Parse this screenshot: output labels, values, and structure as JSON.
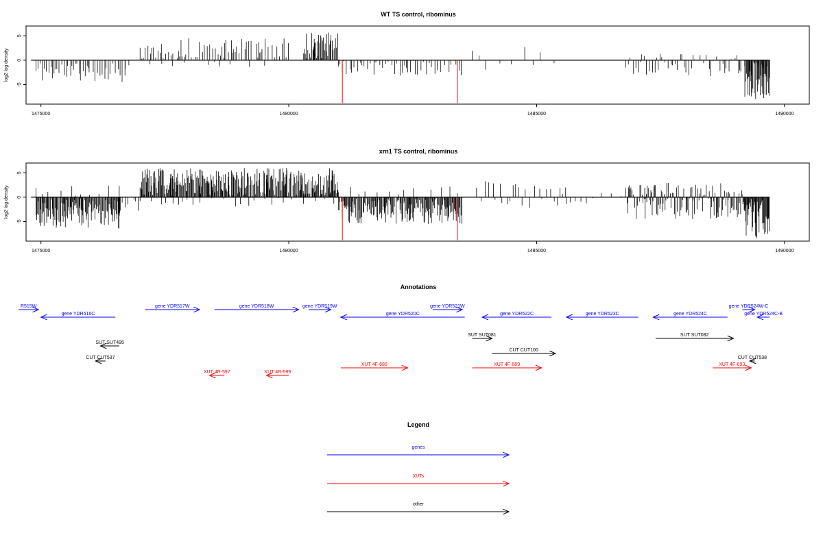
{
  "chart_data": [
    {
      "type": "bar",
      "title": "WT TS control, ribominus",
      "ylabel": "log2 log density",
      "xlim": [
        1474700,
        1490500
      ],
      "ylim": [
        -9,
        7
      ],
      "x_ticks": [
        1475000,
        1480000,
        1485000,
        1490000
      ],
      "y_ticks": [
        5,
        0,
        -5
      ],
      "baseline": {
        "x": [
          1474800,
          1489700
        ],
        "y": 0
      },
      "red_marks": [
        {
          "x": 1481080,
          "y": -8.8
        },
        {
          "x": 1483400,
          "y": -8.8
        }
      ],
      "density_segments": [
        {
          "x": [
            1474900,
            1476700
          ],
          "min": -4.5,
          "max": 0,
          "spacing": 40,
          "seed": 11
        },
        {
          "x": [
            1476700,
            1477000
          ],
          "min": -2.5,
          "max": 0,
          "spacing": 150,
          "seed": 12
        },
        {
          "x": [
            1477000,
            1480000
          ],
          "min": 0,
          "max": 4.5,
          "spacing": 40,
          "seed": 13
        },
        {
          "x": [
            1477200,
            1479800
          ],
          "min": -1.5,
          "max": 0,
          "spacing": 260,
          "seed": 14
        },
        {
          "x": [
            1480300,
            1481000
          ],
          "min": 0,
          "max": 5.8,
          "spacing": 18,
          "seed": 15
        },
        {
          "x": [
            1481000,
            1483500
          ],
          "min": -3.5,
          "max": 0,
          "spacing": 55,
          "seed": 16
        },
        {
          "x": [
            1483700,
            1485500
          ],
          "min": -2.5,
          "max": 4,
          "spacing": 220,
          "seed": 17
        },
        {
          "x": [
            1486800,
            1489200
          ],
          "min": -3.5,
          "max": 1.5,
          "spacing": 45,
          "seed": 18
        },
        {
          "x": [
            1489200,
            1489700
          ],
          "min": -8,
          "max": 0,
          "spacing": 12,
          "seed": 19
        }
      ]
    },
    {
      "type": "bar",
      "title": "xrn1 TS control, ribominus",
      "ylabel": "log2 log density",
      "xlim": [
        1474700,
        1490500
      ],
      "ylim": [
        -9,
        7
      ],
      "x_ticks": [
        1475000,
        1480000,
        1485000,
        1490000
      ],
      "y_ticks": [
        5,
        0,
        -5
      ],
      "baseline": {
        "x": [
          1474800,
          1489700
        ],
        "y": 0
      },
      "red_marks": [
        {
          "x": 1481080,
          "y": -8.8
        },
        {
          "x": 1483400,
          "y": -8.8
        }
      ],
      "density_segments": [
        {
          "x": [
            1474900,
            1476600
          ],
          "min": -6.5,
          "max": 0,
          "spacing": 14,
          "seed": 21
        },
        {
          "x": [
            1474900,
            1476600
          ],
          "min": 0,
          "max": 3,
          "spacing": 180,
          "seed": 22
        },
        {
          "x": [
            1476600,
            1477000
          ],
          "min": -3,
          "max": 0,
          "spacing": 80,
          "seed": 23
        },
        {
          "x": [
            1477000,
            1481000
          ],
          "min": 0,
          "max": 6,
          "spacing": 14,
          "seed": 24
        },
        {
          "x": [
            1477000,
            1481000
          ],
          "min": -2,
          "max": 0,
          "spacing": 160,
          "seed": 25
        },
        {
          "x": [
            1481000,
            1483500
          ],
          "min": -5.5,
          "max": 0,
          "spacing": 14,
          "seed": 26
        },
        {
          "x": [
            1481000,
            1483500
          ],
          "min": 0,
          "max": 2.5,
          "spacing": 240,
          "seed": 27
        },
        {
          "x": [
            1483700,
            1485600
          ],
          "min": -2.5,
          "max": 3.5,
          "spacing": 70,
          "seed": 28
        },
        {
          "x": [
            1485600,
            1486800
          ],
          "min": -2,
          "max": 1,
          "spacing": 140,
          "seed": 29
        },
        {
          "x": [
            1486800,
            1489200
          ],
          "min": -4.5,
          "max": 3,
          "spacing": 18,
          "seed": 30
        },
        {
          "x": [
            1489200,
            1489700
          ],
          "min": -8.5,
          "max": 0,
          "spacing": 10,
          "seed": 31
        }
      ]
    },
    {
      "type": "annotation-track",
      "title": "Annotations",
      "xlim": [
        1474700,
        1490500
      ],
      "features": [
        {
          "label": "R515W",
          "group": "genes",
          "start": 1474550,
          "end": 1474950,
          "strand": "+",
          "row": 1
        },
        {
          "label": "gene YDR516C",
          "group": "genes",
          "start": 1475000,
          "end": 1476500,
          "strand": "-",
          "row": 2
        },
        {
          "label": "gene YDR517W",
          "group": "genes",
          "start": 1477100,
          "end": 1478200,
          "strand": "+",
          "row": 1
        },
        {
          "label": "gene YDR518W",
          "group": "genes",
          "start": 1478500,
          "end": 1480200,
          "strand": "+",
          "row": 1
        },
        {
          "label": "gene YDR519W",
          "group": "genes",
          "start": 1480400,
          "end": 1480850,
          "strand": "+",
          "row": 1
        },
        {
          "label": "gene YDR520C",
          "group": "genes",
          "start": 1481050,
          "end": 1483550,
          "strand": "-",
          "row": 2
        },
        {
          "label": "gene YDR521W",
          "group": "genes",
          "start": 1482900,
          "end": 1483500,
          "strand": "+",
          "row": 1
        },
        {
          "label": "gene YDR522C",
          "group": "genes",
          "start": 1483900,
          "end": 1485300,
          "strand": "-",
          "row": 2
        },
        {
          "label": "gene YDR523C",
          "group": "genes",
          "start": 1485600,
          "end": 1487050,
          "strand": "-",
          "row": 2
        },
        {
          "label": "gene YDR524C",
          "group": "genes",
          "start": 1487350,
          "end": 1488850,
          "strand": "-",
          "row": 2
        },
        {
          "label": "gene YDR524W-C",
          "group": "genes",
          "start": 1489150,
          "end": 1489400,
          "strand": "+",
          "row": 1
        },
        {
          "label": "gene YDR524C-B",
          "group": "genes",
          "start": 1489450,
          "end": 1489700,
          "strand": "-",
          "row": 2
        },
        {
          "label": "SUT SUT495",
          "group": "other",
          "start": 1476200,
          "end": 1476580,
          "strand": "-",
          "row": 4
        },
        {
          "label": "CUT CUT537",
          "group": "other",
          "start": 1476100,
          "end": 1476300,
          "strand": "-",
          "row": 6
        },
        {
          "label": "SUT SUT081",
          "group": "other",
          "start": 1483700,
          "end": 1484100,
          "strand": "+",
          "row": 3
        },
        {
          "label": "CUT CUT100",
          "group": "other",
          "start": 1484100,
          "end": 1485380,
          "strand": "+",
          "row": 5
        },
        {
          "label": "SUT SUT082",
          "group": "other",
          "start": 1487400,
          "end": 1488970,
          "strand": "+",
          "row": 3
        },
        {
          "label": "CUT CUT538",
          "group": "other",
          "start": 1489300,
          "end": 1489400,
          "strand": "-",
          "row": 6
        },
        {
          "label": "XUT 4R-597",
          "group": "XUTs",
          "start": 1478400,
          "end": 1478700,
          "strand": "-",
          "row": 8
        },
        {
          "label": "XUT 4R-599",
          "group": "XUTs",
          "start": 1479550,
          "end": 1480000,
          "strand": "-",
          "row": 8
        },
        {
          "label": "XUT 4F-685",
          "group": "XUTs",
          "start": 1481050,
          "end": 1482400,
          "strand": "+",
          "row": 7
        },
        {
          "label": "XUT 4F-689",
          "group": "XUTs",
          "start": 1483700,
          "end": 1485100,
          "strand": "+",
          "row": 7
        },
        {
          "label": "XUT 4F-693",
          "group": "XUTs",
          "start": 1488550,
          "end": 1489330,
          "strand": "+",
          "row": 7
        }
      ]
    }
  ],
  "legend": {
    "title": "Legend",
    "entries": [
      {
        "label": "genes",
        "color": "#0000ff"
      },
      {
        "label": "XUTs",
        "color": "#ff0000"
      },
      {
        "label": "other",
        "color": "#000000"
      }
    ]
  },
  "colors": {
    "genes": "#0000ff",
    "XUTs": "#ff0000",
    "other": "#000000",
    "density": "#000000",
    "highlight": "#ff0000"
  }
}
